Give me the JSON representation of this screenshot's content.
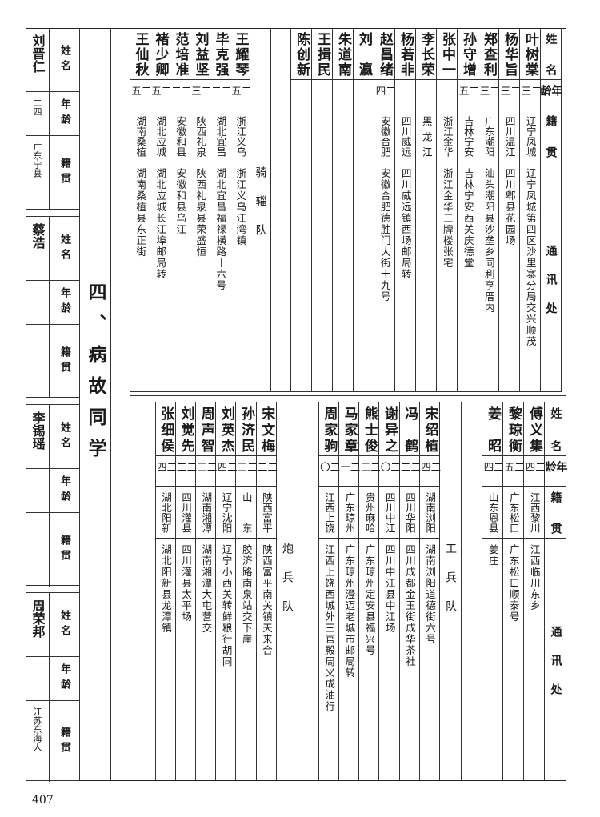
{
  "page_number": "407",
  "section_title": "四、病故同学",
  "headers": {
    "name": "姓名",
    "age": "年龄",
    "origin": "籍贯",
    "address": "通讯处"
  },
  "top_table": {
    "groups": [
      {
        "label": "",
        "entries": [
          {
            "name": "叶树棠",
            "age": "二三",
            "origin": "辽宁凤城",
            "address": "辽宁凤城第四区沙里寨分局交兴顺茂"
          },
          {
            "name": "杨华旨",
            "age": "二三",
            "origin": "四川温江",
            "address": "四川郫县花园场"
          },
          {
            "name": "郑查利",
            "age": "二三",
            "origin": "广东潮阳",
            "address": "汕头潮阳县沙垄乡同利亨厝内"
          },
          {
            "name": "孙守增",
            "age": "二五",
            "origin": "吉林宁安",
            "address": "吉林宁安西关庆德堂"
          },
          {
            "name": "张中一",
            "age": "",
            "origin": "浙江金华",
            "address": "浙江金华三牌楼张宅"
          },
          {
            "name": "李长荣",
            "age": "",
            "origin": "黑龙江",
            "address": ""
          },
          {
            "name": "杨若非",
            "age": "",
            "origin": "四川威远",
            "address": "四川威远镇西场邮局转"
          },
          {
            "name": "赵昌绪",
            "age": "二四",
            "origin": "安徽合肥",
            "address": "安徽合肥德胜门大街十九号"
          },
          {
            "name": "刘瀛",
            "age": "",
            "origin": "",
            "address": ""
          },
          {
            "name": "朱道南",
            "age": "",
            "origin": "",
            "address": ""
          },
          {
            "name": "王揖民",
            "age": "",
            "origin": "",
            "address": ""
          },
          {
            "name": "陈创新",
            "age": "",
            "origin": "",
            "address": ""
          }
        ]
      },
      {
        "label": "骑辎队",
        "entries": [
          {
            "name": "王耀琴",
            "age": "二五",
            "origin": "浙江义乌",
            "address": "浙江义乌江湾镇"
          },
          {
            "name": "毕克强",
            "age": "二二",
            "origin": "湖北宜昌",
            "address": "湖北宜昌福禄横路十六号"
          },
          {
            "name": "刘益坚",
            "age": "二三",
            "origin": "陕西礼泉",
            "address": "陕西礼泉县荣盛恒"
          },
          {
            "name": "范培准",
            "age": "二二",
            "origin": "安徽和县",
            "address": "安徽和县乌江"
          },
          {
            "name": "褚少卿",
            "age": "二五",
            "origin": "湖北应城",
            "address": "湖北应城长江埠邮局转"
          },
          {
            "name": "王仙秋",
            "age": "二五",
            "origin": "湖南桑植",
            "address": "湖南桑植县东正街"
          }
        ]
      }
    ]
  },
  "bottom_table": {
    "groups": [
      {
        "label": "",
        "entries": [
          {
            "name": "傅义集",
            "age": "二四",
            "origin": "江西黎川",
            "address": "江西临川东乡"
          },
          {
            "name": "黎琼衡",
            "age": "二五",
            "origin": "广东松口",
            "address": "广东松口顺泰号"
          },
          {
            "name": "姜昭",
            "age": "二四",
            "origin": "山东恩县",
            "address": "姜庄"
          }
        ]
      },
      {
        "label": "工兵队",
        "entries": [
          {
            "name": "宋绍植",
            "age": "二四",
            "origin": "湖南浏阳",
            "address": "湖南浏阳道德街六号"
          },
          {
            "name": "冯鹤",
            "age": "二二",
            "origin": "四川华阳",
            "address": "四川成都金玉街成华茶社"
          },
          {
            "name": "谢异之",
            "age": "二〇",
            "origin": "四川中江",
            "address": "四川中江县中江场"
          },
          {
            "name": "熊士俊",
            "age": "二三",
            "origin": "贵州麻哈",
            "address": "广东琼州定安县福兴号"
          },
          {
            "name": "马家章",
            "age": "二一",
            "origin": "广东琼州",
            "address": "广东琼州澄迈老城市邮局转"
          },
          {
            "name": "周家驹",
            "age": "二〇",
            "origin": "江西上饶",
            "address": "江西上饶西城外三官殿周义成油行"
          }
        ]
      },
      {
        "label": "炮兵队",
        "entries": [
          {
            "name": "宋文梅",
            "age": "二二",
            "origin": "陕西富平",
            "address": "陕西富平南关镇天来合"
          },
          {
            "name": "孙济民",
            "age": "二三",
            "origin": "山东",
            "address": "胶济路南泉站交下崖"
          },
          {
            "name": "刘英杰",
            "age": "二四",
            "origin": "辽宁沈阳",
            "address": "辽宁小西关转鲜粮行胡同"
          },
          {
            "name": "周声智",
            "age": "二三",
            "origin": "湖南湘潭",
            "address": "湖南湘潭大屯营交"
          },
          {
            "name": "刘觉先",
            "age": "二二",
            "origin": "四川灌县",
            "address": "四川灌县太平场"
          },
          {
            "name": "张细侯",
            "age": "二四",
            "origin": "湖北阳新",
            "address": "湖北阳新县龙潭镇"
          }
        ]
      }
    ]
  },
  "deceased": [
    {
      "name": "刘晋仁",
      "age": "二四",
      "origin": "广东宁县"
    },
    {
      "name": "蔡浩",
      "age": "",
      "origin": ""
    },
    {
      "name": "李锡瑶",
      "age": "",
      "origin": ""
    },
    {
      "name": "周荣邦",
      "age": "",
      "origin": "江苏东海人"
    }
  ]
}
